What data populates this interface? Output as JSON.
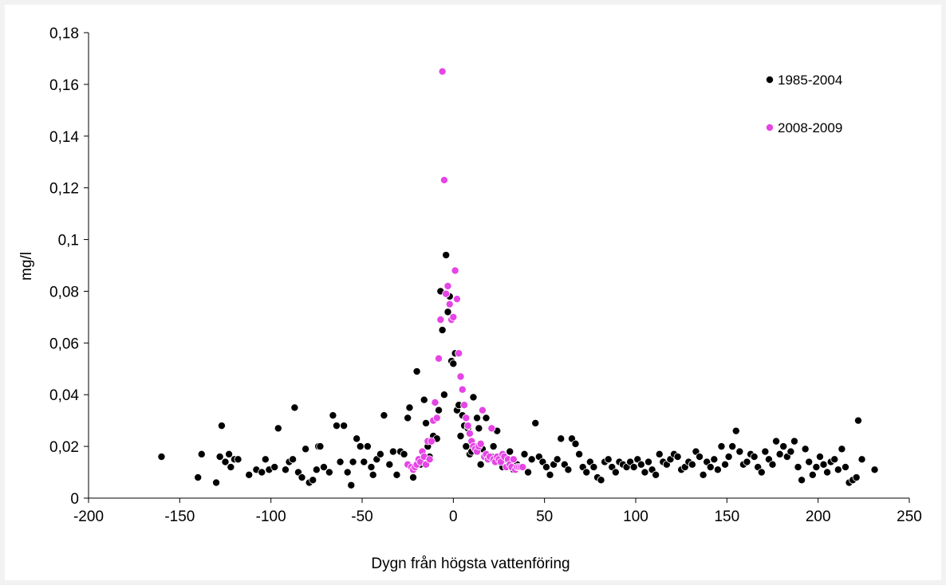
{
  "chart_data": {
    "type": "scatter",
    "title": "",
    "xlabel": "Dygn från högsta vattenföring",
    "ylabel": "mg/l",
    "xlim": [
      -200,
      250
    ],
    "ylim": [
      0,
      0.18
    ],
    "x_ticks": [
      -200,
      -150,
      -100,
      -50,
      0,
      50,
      100,
      150,
      200,
      250
    ],
    "x_tick_labels": [
      "-200",
      "-150",
      "-100",
      "-50",
      "0",
      "50",
      "100",
      "150",
      "200",
      "250"
    ],
    "y_ticks": [
      0,
      0.02,
      0.04,
      0.06,
      0.08,
      0.1,
      0.12,
      0.14,
      0.16,
      0.18
    ],
    "y_tick_labels": [
      "0",
      "0,02",
      "0,04",
      "0,06",
      "0,08",
      "0,1",
      "0,12",
      "0,14",
      "0,16",
      "0,18"
    ],
    "grid": false,
    "legend_position": "top-right",
    "series": [
      {
        "name": "1985-2004",
        "color": "#000000",
        "points": [
          [
            -160,
            0.016
          ],
          [
            -140,
            0.008
          ],
          [
            -138,
            0.017
          ],
          [
            -130,
            0.006
          ],
          [
            -128,
            0.016
          ],
          [
            -127,
            0.028
          ],
          [
            -125,
            0.014
          ],
          [
            -123,
            0.017
          ],
          [
            -122,
            0.012
          ],
          [
            -120,
            0.015
          ],
          [
            -118,
            0.015
          ],
          [
            -112,
            0.009
          ],
          [
            -108,
            0.011
          ],
          [
            -105,
            0.01
          ],
          [
            -103,
            0.015
          ],
          [
            -101,
            0.011
          ],
          [
            -98,
            0.012
          ],
          [
            -96,
            0.027
          ],
          [
            -92,
            0.011
          ],
          [
            -90,
            0.014
          ],
          [
            -88,
            0.015
          ],
          [
            -87,
            0.035
          ],
          [
            -85,
            0.01
          ],
          [
            -83,
            0.008
          ],
          [
            -81,
            0.019
          ],
          [
            -79,
            0.006
          ],
          [
            -77,
            0.007
          ],
          [
            -75,
            0.011
          ],
          [
            -74,
            0.02
          ],
          [
            -73,
            0.02
          ],
          [
            -71,
            0.012
          ],
          [
            -68,
            0.01
          ],
          [
            -66,
            0.032
          ],
          [
            -64,
            0.028
          ],
          [
            -62,
            0.014
          ],
          [
            -60,
            0.028
          ],
          [
            -58,
            0.01
          ],
          [
            -56,
            0.005
          ],
          [
            -55,
            0.014
          ],
          [
            -53,
            0.023
          ],
          [
            -51,
            0.02
          ],
          [
            -49,
            0.014
          ],
          [
            -47,
            0.02
          ],
          [
            -45,
            0.012
          ],
          [
            -44,
            0.009
          ],
          [
            -42,
            0.015
          ],
          [
            -40,
            0.017
          ],
          [
            -38,
            0.032
          ],
          [
            -35,
            0.013
          ],
          [
            -33,
            0.018
          ],
          [
            -31,
            0.009
          ],
          [
            -29,
            0.018
          ],
          [
            -27,
            0.017
          ],
          [
            -25,
            0.031
          ],
          [
            -24,
            0.035
          ],
          [
            -22,
            0.008
          ],
          [
            -20,
            0.049
          ],
          [
            -18,
            0.013
          ],
          [
            -16,
            0.038
          ],
          [
            -15,
            0.029
          ],
          [
            -14,
            0.02
          ],
          [
            -13,
            0.016
          ],
          [
            -11,
            0.024
          ],
          [
            -9,
            0.023
          ],
          [
            -8,
            0.034
          ],
          [
            -7,
            0.08
          ],
          [
            -6,
            0.065
          ],
          [
            -5,
            0.04
          ],
          [
            -4,
            0.094
          ],
          [
            -3,
            0.072
          ],
          [
            -2,
            0.078
          ],
          [
            -1,
            0.053
          ],
          [
            0,
            0.052
          ],
          [
            1,
            0.056
          ],
          [
            2,
            0.034
          ],
          [
            3,
            0.036
          ],
          [
            4,
            0.024
          ],
          [
            5,
            0.032
          ],
          [
            6,
            0.028
          ],
          [
            7,
            0.02
          ],
          [
            8,
            0.027
          ],
          [
            9,
            0.017
          ],
          [
            10,
            0.018
          ],
          [
            11,
            0.039
          ],
          [
            12,
            0.02
          ],
          [
            13,
            0.031
          ],
          [
            14,
            0.027
          ],
          [
            15,
            0.013
          ],
          [
            16,
            0.019
          ],
          [
            18,
            0.031
          ],
          [
            19,
            0.015
          ],
          [
            21,
            0.016
          ],
          [
            22,
            0.02
          ],
          [
            24,
            0.026
          ],
          [
            25,
            0.014
          ],
          [
            27,
            0.012
          ],
          [
            29,
            0.015
          ],
          [
            31,
            0.018
          ],
          [
            33,
            0.011
          ],
          [
            35,
            0.013
          ],
          [
            37,
            0.012
          ],
          [
            39,
            0.017
          ],
          [
            41,
            0.01
          ],
          [
            43,
            0.015
          ],
          [
            45,
            0.029
          ],
          [
            47,
            0.016
          ],
          [
            49,
            0.014
          ],
          [
            51,
            0.012
          ],
          [
            53,
            0.009
          ],
          [
            55,
            0.013
          ],
          [
            57,
            0.015
          ],
          [
            59,
            0.023
          ],
          [
            61,
            0.013
          ],
          [
            63,
            0.011
          ],
          [
            65,
            0.023
          ],
          [
            67,
            0.021
          ],
          [
            69,
            0.017
          ],
          [
            71,
            0.012
          ],
          [
            73,
            0.01
          ],
          [
            75,
            0.014
          ],
          [
            77,
            0.012
          ],
          [
            79,
            0.008
          ],
          [
            81,
            0.007
          ],
          [
            83,
            0.014
          ],
          [
            85,
            0.015
          ],
          [
            87,
            0.012
          ],
          [
            89,
            0.01
          ],
          [
            91,
            0.014
          ],
          [
            93,
            0.013
          ],
          [
            95,
            0.012
          ],
          [
            97,
            0.014
          ],
          [
            99,
            0.012
          ],
          [
            101,
            0.015
          ],
          [
            103,
            0.013
          ],
          [
            105,
            0.01
          ],
          [
            107,
            0.014
          ],
          [
            109,
            0.011
          ],
          [
            111,
            0.009
          ],
          [
            113,
            0.017
          ],
          [
            115,
            0.014
          ],
          [
            117,
            0.013
          ],
          [
            119,
            0.015
          ],
          [
            121,
            0.017
          ],
          [
            123,
            0.016
          ],
          [
            125,
            0.011
          ],
          [
            127,
            0.012
          ],
          [
            129,
            0.014
          ],
          [
            131,
            0.013
          ],
          [
            133,
            0.018
          ],
          [
            135,
            0.016
          ],
          [
            137,
            0.009
          ],
          [
            139,
            0.014
          ],
          [
            141,
            0.012
          ],
          [
            143,
            0.015
          ],
          [
            145,
            0.011
          ],
          [
            147,
            0.02
          ],
          [
            149,
            0.013
          ],
          [
            151,
            0.016
          ],
          [
            153,
            0.02
          ],
          [
            155,
            0.026
          ],
          [
            157,
            0.018
          ],
          [
            159,
            0.013
          ],
          [
            161,
            0.014
          ],
          [
            163,
            0.017
          ],
          [
            165,
            0.016
          ],
          [
            167,
            0.012
          ],
          [
            169,
            0.01
          ],
          [
            171,
            0.018
          ],
          [
            173,
            0.015
          ],
          [
            175,
            0.013
          ],
          [
            177,
            0.022
          ],
          [
            179,
            0.017
          ],
          [
            181,
            0.02
          ],
          [
            183,
            0.016
          ],
          [
            185,
            0.018
          ],
          [
            187,
            0.022
          ],
          [
            189,
            0.012
          ],
          [
            191,
            0.007
          ],
          [
            193,
            0.019
          ],
          [
            195,
            0.014
          ],
          [
            197,
            0.009
          ],
          [
            199,
            0.012
          ],
          [
            201,
            0.016
          ],
          [
            203,
            0.013
          ],
          [
            205,
            0.01
          ],
          [
            207,
            0.014
          ],
          [
            209,
            0.015
          ],
          [
            211,
            0.011
          ],
          [
            213,
            0.019
          ],
          [
            215,
            0.012
          ],
          [
            217,
            0.006
          ],
          [
            219,
            0.007
          ],
          [
            221,
            0.008
          ],
          [
            222,
            0.03
          ],
          [
            224,
            0.015
          ],
          [
            231,
            0.011
          ]
        ]
      },
      {
        "name": "2008-2009",
        "color": "#e545e5",
        "points": [
          [
            -25,
            0.013
          ],
          [
            -23,
            0.012
          ],
          [
            -22,
            0.011
          ],
          [
            -21,
            0.012
          ],
          [
            -20,
            0.013
          ],
          [
            -19,
            0.015
          ],
          [
            -18,
            0.014
          ],
          [
            -17,
            0.018
          ],
          [
            -16,
            0.016
          ],
          [
            -15,
            0.013
          ],
          [
            -14,
            0.022
          ],
          [
            -13,
            0.015
          ],
          [
            -12,
            0.022
          ],
          [
            -11,
            0.03
          ],
          [
            -10,
            0.037
          ],
          [
            -9,
            0.031
          ],
          [
            -8,
            0.054
          ],
          [
            -7,
            0.069
          ],
          [
            -6,
            0.165
          ],
          [
            -5,
            0.123
          ],
          [
            -4,
            0.079
          ],
          [
            -3,
            0.082
          ],
          [
            -2,
            0.075
          ],
          [
            -1,
            0.069
          ],
          [
            0,
            0.07
          ],
          [
            1,
            0.088
          ],
          [
            2,
            0.077
          ],
          [
            3,
            0.056
          ],
          [
            4,
            0.047
          ],
          [
            5,
            0.042
          ],
          [
            6,
            0.036
          ],
          [
            7,
            0.031
          ],
          [
            8,
            0.028
          ],
          [
            9,
            0.025
          ],
          [
            10,
            0.022
          ],
          [
            11,
            0.02
          ],
          [
            12,
            0.019
          ],
          [
            13,
            0.018
          ],
          [
            14,
            0.02
          ],
          [
            15,
            0.021
          ],
          [
            16,
            0.034
          ],
          [
            17,
            0.016
          ],
          [
            18,
            0.017
          ],
          [
            19,
            0.015
          ],
          [
            20,
            0.016
          ],
          [
            21,
            0.027
          ],
          [
            22,
            0.015
          ],
          [
            23,
            0.014
          ],
          [
            24,
            0.016
          ],
          [
            25,
            0.015
          ],
          [
            26,
            0.014
          ],
          [
            27,
            0.017
          ],
          [
            28,
            0.016
          ],
          [
            29,
            0.012
          ],
          [
            30,
            0.015
          ],
          [
            31,
            0.013
          ],
          [
            32,
            0.012
          ],
          [
            33,
            0.015
          ],
          [
            34,
            0.011
          ],
          [
            35,
            0.012
          ],
          [
            36,
            0.012
          ],
          [
            37,
            0.012
          ],
          [
            38,
            0.012
          ]
        ]
      }
    ]
  }
}
